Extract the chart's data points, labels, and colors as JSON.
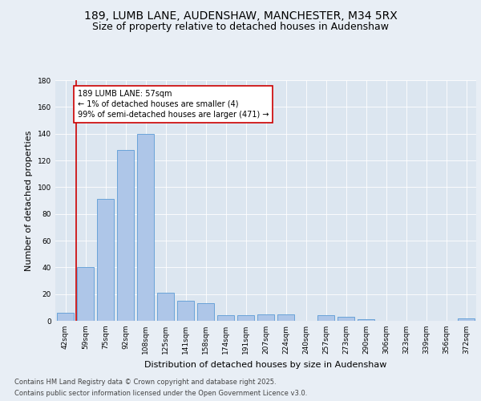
{
  "title_line1": "189, LUMB LANE, AUDENSHAW, MANCHESTER, M34 5RX",
  "title_line2": "Size of property relative to detached houses in Audenshaw",
  "xlabel": "Distribution of detached houses by size in Audenshaw",
  "ylabel": "Number of detached properties",
  "categories": [
    "42sqm",
    "59sqm",
    "75sqm",
    "92sqm",
    "108sqm",
    "125sqm",
    "141sqm",
    "158sqm",
    "174sqm",
    "191sqm",
    "207sqm",
    "224sqm",
    "240sqm",
    "257sqm",
    "273sqm",
    "290sqm",
    "306sqm",
    "323sqm",
    "339sqm",
    "356sqm",
    "372sqm"
  ],
  "values": [
    6,
    40,
    91,
    128,
    140,
    21,
    15,
    13,
    4,
    4,
    5,
    5,
    0,
    4,
    3,
    1,
    0,
    0,
    0,
    0,
    2
  ],
  "bar_color": "#aec6e8",
  "bar_edge_color": "#5b9bd5",
  "marker_line_color": "#cc0000",
  "annotation_text": "189 LUMB LANE: 57sqm\n← 1% of detached houses are smaller (4)\n99% of semi-detached houses are larger (471) →",
  "annotation_box_color": "#ffffff",
  "annotation_box_edge": "#cc0000",
  "ylim": [
    0,
    180
  ],
  "yticks": [
    0,
    20,
    40,
    60,
    80,
    100,
    120,
    140,
    160,
    180
  ],
  "bg_color": "#e8eef5",
  "plot_bg_color": "#dce6f0",
  "footer_line1": "Contains HM Land Registry data © Crown copyright and database right 2025.",
  "footer_line2": "Contains public sector information licensed under the Open Government Licence v3.0.",
  "title_fontsize": 10,
  "subtitle_fontsize": 9,
  "axis_label_fontsize": 8,
  "tick_fontsize": 6.5,
  "footer_fontsize": 6,
  "annotation_fontsize": 7
}
